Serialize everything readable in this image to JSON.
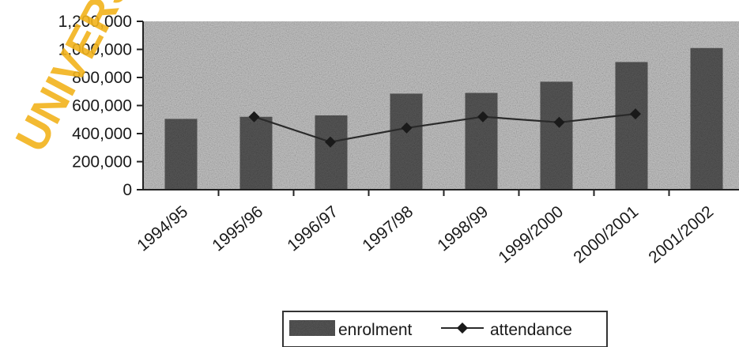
{
  "watermark": "UNIVERSITY",
  "chart_data": {
    "type": "bar",
    "categories": [
      "1994/95",
      "1995/96",
      "1996/97",
      "1997/98",
      "1998/99",
      "1999/2000",
      "2000/2001",
      "2001/2002"
    ],
    "series": [
      {
        "name": "enrolment",
        "type": "bar",
        "values": [
          505000,
          520000,
          530000,
          685000,
          690000,
          770000,
          910000,
          1010000
        ]
      },
      {
        "name": "attendance",
        "type": "line",
        "values": [
          null,
          520000,
          340000,
          440000,
          520000,
          480000,
          540000,
          null
        ]
      }
    ],
    "y_ticks": [
      "0",
      "200,000",
      "400,000",
      "600,000",
      "800,000",
      "1,000,000",
      "1,200,000"
    ],
    "ylim": [
      0,
      1200000
    ],
    "legend_position": "bottom-center",
    "grid": false,
    "colors": {
      "bar": "#5a5a5a",
      "plot_background": "#c9c9c9",
      "line": "#2a2a2a",
      "watermark": "#f2b31c"
    }
  }
}
